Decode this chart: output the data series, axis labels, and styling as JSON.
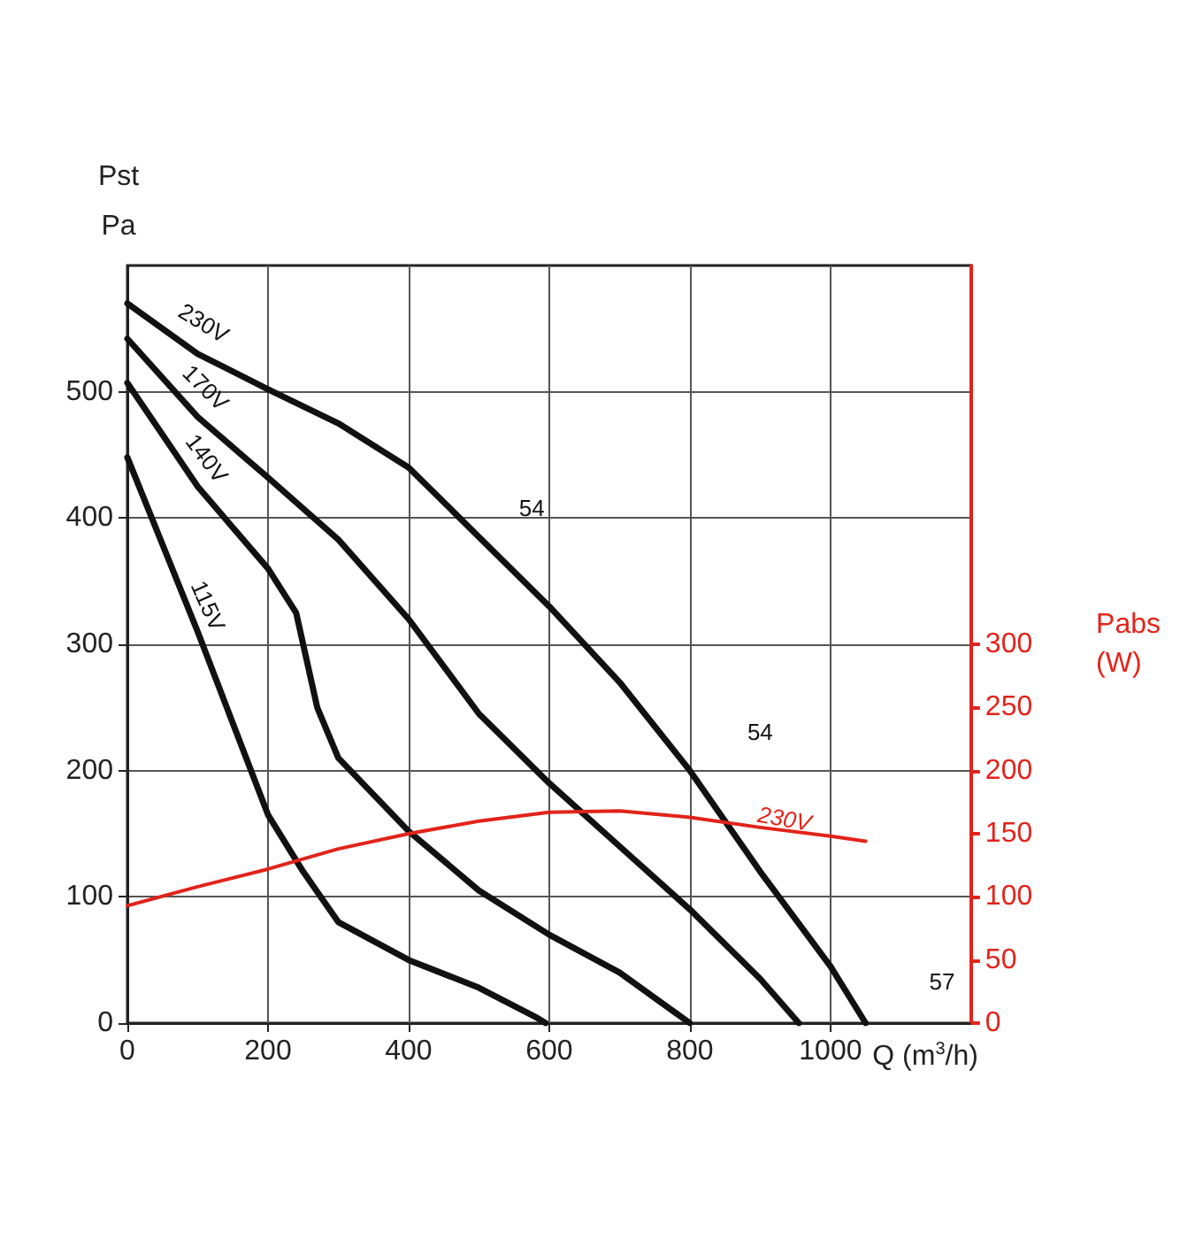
{
  "chart_data": {
    "type": "line",
    "xlabel": "Q (m$^{3}$/h)",
    "ylabel": "Pst\nPa",
    "y2label": "Pabs\n(W)",
    "xlim": [
      0,
      1200
    ],
    "xticks": [
      0,
      200,
      400,
      600,
      800,
      1000
    ],
    "ylim": [
      0,
      600
    ],
    "yticks": [
      0,
      100,
      200,
      300,
      400,
      500
    ],
    "y2lim": [
      0,
      600
    ],
    "y2ticks": [
      0,
      50,
      100,
      150,
      200,
      250,
      300
    ],
    "grid": true,
    "marker": "none",
    "line_style": "solid",
    "series": [
      {
        "name": "230V",
        "color": "#111111",
        "x": [
          0,
          100,
          200,
          300,
          400,
          500,
          600,
          700,
          800,
          900,
          1000,
          1050
        ],
        "values": [
          570,
          530,
          502,
          475,
          440,
          385,
          330,
          270,
          200,
          120,
          45,
          0
        ]
      },
      {
        "name": "170V",
        "color": "#111111",
        "x": [
          0,
          100,
          200,
          300,
          400,
          500,
          600,
          700,
          800,
          900,
          955
        ],
        "values": [
          542,
          480,
          432,
          383,
          320,
          245,
          190,
          140,
          90,
          35,
          0
        ]
      },
      {
        "name": "140V",
        "color": "#111111",
        "x": [
          0,
          100,
          200,
          240,
          270,
          300,
          400,
          500,
          600,
          700,
          800
        ],
        "values": [
          507,
          425,
          360,
          325,
          250,
          210,
          152,
          105,
          70,
          40,
          0
        ]
      },
      {
        "name": "115V",
        "color": "#111111",
        "x": [
          0,
          100,
          200,
          250,
          300,
          400,
          500,
          580,
          595
        ],
        "values": [
          448,
          310,
          165,
          120,
          80,
          50,
          28,
          5,
          0
        ]
      },
      {
        "name": "230V",
        "color": "#e2231a",
        "axis": "y2",
        "x": [
          0,
          100,
          200,
          300,
          400,
          500,
          600,
          700,
          800,
          900,
          1000,
          1050
        ],
        "values": [
          93,
          108,
          122,
          138,
          150,
          160,
          167,
          168,
          163,
          155,
          148,
          144
        ]
      }
    ],
    "annotations": [
      "54",
      "54",
      "57"
    ]
  }
}
